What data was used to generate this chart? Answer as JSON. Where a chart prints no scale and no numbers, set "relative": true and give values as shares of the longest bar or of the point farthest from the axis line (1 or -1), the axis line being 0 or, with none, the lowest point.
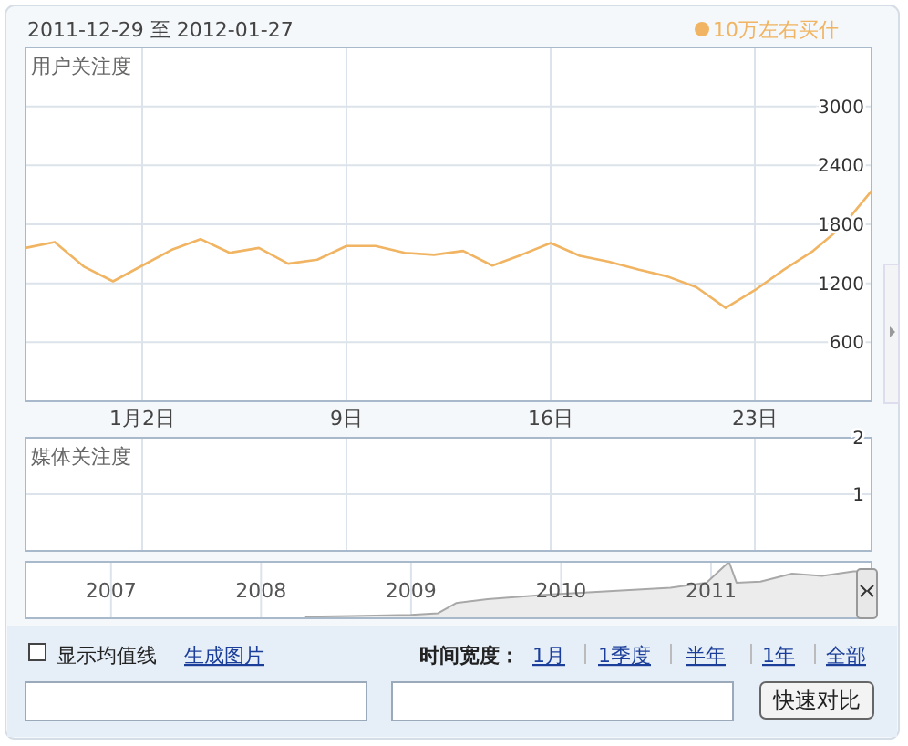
{
  "chart_data": [
    {
      "type": "line",
      "title": "2011-12-29 至 2012-01-27",
      "ylabel": "用户关注度",
      "legend": "top right",
      "grid": true,
      "xlim": [
        "2011-12-29",
        "2012-01-27"
      ],
      "xticks": [
        {
          "value": "2012-01-02",
          "label": "1月2日"
        },
        {
          "value": "2012-01-09",
          "label": "9日"
        },
        {
          "value": "2012-01-16",
          "label": "16日"
        },
        {
          "value": "2012-01-23",
          "label": "23日"
        }
      ],
      "ylim": [
        0,
        3600
      ],
      "yticks": [
        600,
        1200,
        1800,
        2400,
        3000
      ],
      "x": [
        "2011-12-29",
        "2011-12-30",
        "2011-12-31",
        "2012-01-01",
        "2012-01-02",
        "2012-01-03",
        "2012-01-04",
        "2012-01-05",
        "2012-01-06",
        "2012-01-07",
        "2012-01-08",
        "2012-01-09",
        "2012-01-10",
        "2012-01-11",
        "2012-01-12",
        "2012-01-13",
        "2012-01-14",
        "2012-01-15",
        "2012-01-16",
        "2012-01-17",
        "2012-01-18",
        "2012-01-19",
        "2012-01-20",
        "2012-01-21",
        "2012-01-22",
        "2012-01-23",
        "2012-01-24",
        "2012-01-25",
        "2012-01-26",
        "2012-01-27"
      ],
      "series": [
        {
          "name": "10万左右买什",
          "color": "#f0b462",
          "values": [
            1560,
            1620,
            1370,
            1220,
            1380,
            1540,
            1650,
            1510,
            1560,
            1400,
            1440,
            1580,
            1580,
            1510,
            1490,
            1530,
            1380,
            1490,
            1610,
            1480,
            1420,
            1340,
            1270,
            1160,
            950,
            1130,
            1340,
            1530,
            1780,
            2140
          ]
        }
      ]
    },
    {
      "type": "line",
      "ylabel": "媒体关注度",
      "grid": true,
      "tick_labels": "y",
      "xlim": [
        "2011-12-29",
        "2012-01-27"
      ],
      "xticks": [
        {
          "value": "2012-01-02",
          "label": null
        },
        {
          "value": "2012-01-09",
          "label": null
        },
        {
          "value": "2012-01-16",
          "label": null
        },
        {
          "value": "2012-01-23",
          "label": null
        }
      ],
      "ylim": [
        0,
        2
      ],
      "yticks": [
        1,
        2
      ]
    },
    {
      "type": "area",
      "relative": true,
      "grid": "x",
      "tick_labels": "x",
      "xlim": [
        2006.43,
        2012.07
      ],
      "xticks": [
        2007,
        2008,
        2009,
        2010,
        2011
      ],
      "x": [
        2008.3,
        2008.6,
        2009.0,
        2009.18,
        2009.3,
        2009.51,
        2009.91,
        2010.32,
        2010.73,
        2010.97,
        2011.12,
        2011.17,
        2011.33,
        2011.54,
        2011.74,
        2011.95,
        2012.07
      ],
      "series": [
        {
          "color": "#a8a8a8",
          "values": [
            0.03,
            0.04,
            0.06,
            0.09,
            0.27,
            0.34,
            0.42,
            0.48,
            0.54,
            0.63,
            1,
            0.63,
            0.65,
            0.79,
            0.75,
            0.83,
            0.83
          ]
        }
      ],
      "annotations": [
        "显示均值线",
        "生成图片",
        "时间宽度：",
        "1月",
        "1季度",
        "半年",
        "1年",
        "全部",
        "快速对比"
      ]
    }
  ]
}
